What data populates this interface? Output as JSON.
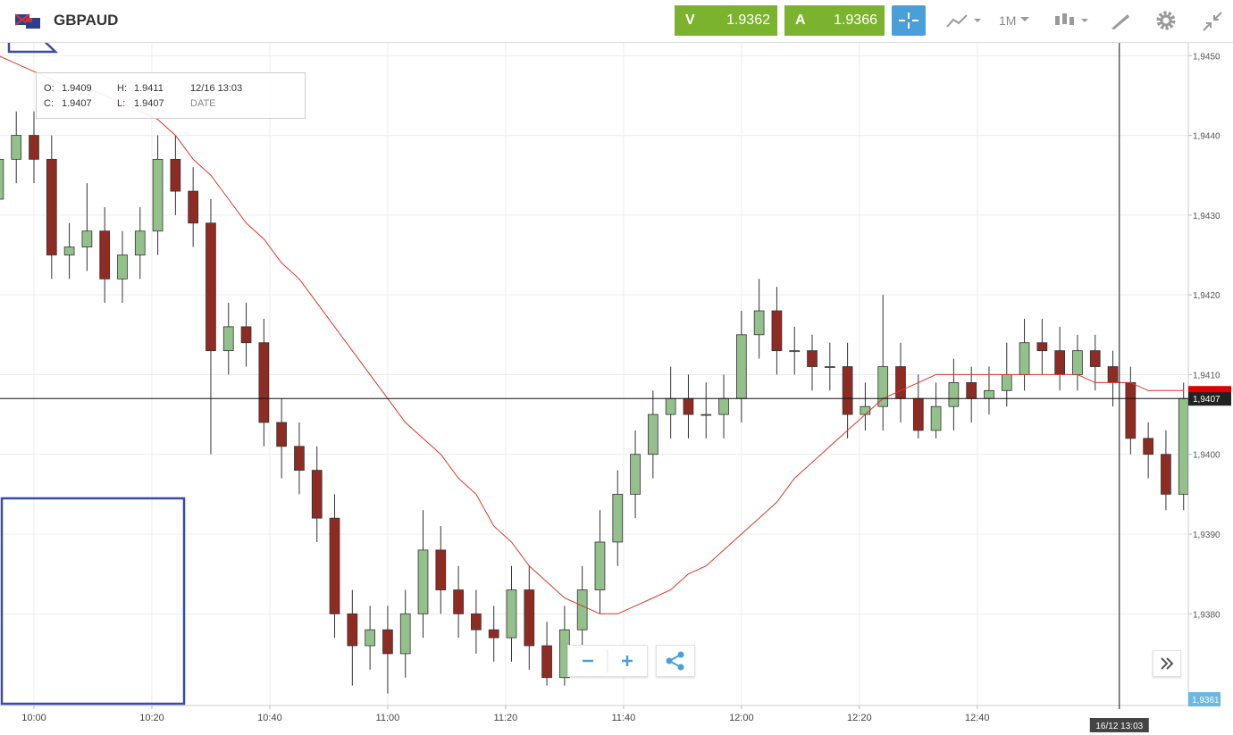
{
  "header": {
    "symbol": "GBPAUD",
    "sell_label": "V",
    "sell_price": "1.9362",
    "buy_label": "A",
    "buy_price": "1.9366",
    "timeframe": "1M"
  },
  "ohlc_box": {
    "o_label": "O:",
    "o": "1.9409",
    "h_label": "H:",
    "h": "1.9411",
    "c_label": "C:",
    "c": "1.9407",
    "l_label": "L:",
    "l": "1.9407",
    "date": "12/16 13:03",
    "date_label": "DATE"
  },
  "chart_data": {
    "type": "candlestick",
    "x": [
      -6,
      -3,
      0,
      3,
      6,
      9,
      12,
      15,
      18,
      21,
      24,
      27,
      30,
      33,
      36,
      39,
      42,
      45,
      48,
      51,
      54,
      57,
      60,
      63,
      66,
      69,
      72,
      75,
      78,
      81,
      84,
      87,
      90,
      93,
      96,
      99,
      102,
      105,
      108,
      111,
      114,
      117,
      120,
      123,
      126,
      129,
      132,
      135,
      138,
      141,
      144,
      147,
      150,
      153,
      156,
      159,
      162,
      165,
      168,
      171,
      174,
      177,
      180,
      183,
      186,
      189,
      192,
      195
    ],
    "open": [
      1.9432,
      1.9437,
      1.944,
      1.9437,
      1.9425,
      1.9426,
      1.9428,
      1.9422,
      1.9425,
      1.9428,
      1.9437,
      1.9433,
      1.9429,
      1.9413,
      1.9416,
      1.9414,
      1.9404,
      1.9401,
      1.9398,
      1.9392,
      1.938,
      1.9376,
      1.9378,
      1.9375,
      1.938,
      1.9388,
      1.9383,
      1.938,
      1.9378,
      1.9377,
      1.9383,
      1.9376,
      1.9372,
      1.9378,
      1.9383,
      1.9389,
      1.9395,
      1.94,
      1.9405,
      1.9407,
      1.9405,
      1.9405,
      1.9407,
      1.9415,
      1.9418,
      1.9413,
      1.9413,
      1.9411,
      1.9411,
      1.9405,
      1.9406,
      1.9411,
      1.9407,
      1.9403,
      1.9406,
      1.9409,
      1.9407,
      1.9408,
      1.941,
      1.9414,
      1.9413,
      1.941,
      1.9413,
      1.9411,
      1.9409,
      1.9402,
      1.94,
      1.9395
    ],
    "high": [
      1.944,
      1.9443,
      1.9443,
      1.944,
      1.9429,
      1.9434,
      1.9431,
      1.9428,
      1.9431,
      1.944,
      1.944,
      1.9436,
      1.9432,
      1.9419,
      1.9419,
      1.9417,
      1.9407,
      1.9404,
      1.9401,
      1.9395,
      1.9383,
      1.9381,
      1.9381,
      1.9383,
      1.9393,
      1.9391,
      1.9386,
      1.9383,
      1.9381,
      1.9386,
      1.9386,
      1.9379,
      1.9381,
      1.9386,
      1.9393,
      1.9398,
      1.9403,
      1.9408,
      1.9411,
      1.941,
      1.9409,
      1.941,
      1.9418,
      1.9422,
      1.9421,
      1.9416,
      1.9415,
      1.9414,
      1.9414,
      1.9409,
      1.942,
      1.9414,
      1.941,
      1.9409,
      1.9412,
      1.9411,
      1.9411,
      1.9414,
      1.9417,
      1.9417,
      1.9416,
      1.9415,
      1.9415,
      1.9413,
      1.9411,
      1.9404,
      1.9403,
      1.9409
    ],
    "low": [
      1.9429,
      1.9434,
      1.9434,
      1.9422,
      1.9422,
      1.9423,
      1.9419,
      1.9419,
      1.9422,
      1.9425,
      1.943,
      1.9426,
      1.94,
      1.941,
      1.9411,
      1.9401,
      1.9397,
      1.9395,
      1.9389,
      1.9377,
      1.9371,
      1.9373,
      1.937,
      1.9372,
      1.9377,
      1.938,
      1.9377,
      1.9375,
      1.9374,
      1.9374,
      1.9373,
      1.9371,
      1.9371,
      1.9375,
      1.938,
      1.9386,
      1.9392,
      1.9397,
      1.9402,
      1.9402,
      1.9402,
      1.9402,
      1.9404,
      1.9412,
      1.941,
      1.941,
      1.9408,
      1.9408,
      1.9402,
      1.9403,
      1.9403,
      1.9404,
      1.9402,
      1.9402,
      1.9403,
      1.9404,
      1.9405,
      1.9406,
      1.9408,
      1.941,
      1.9408,
      1.9408,
      1.9408,
      1.9406,
      1.94,
      1.9397,
      1.9393,
      1.9393
    ],
    "close": [
      1.9437,
      1.944,
      1.9437,
      1.9425,
      1.9426,
      1.9428,
      1.9422,
      1.9425,
      1.9428,
      1.9437,
      1.9433,
      1.9429,
      1.9413,
      1.9416,
      1.9414,
      1.9404,
      1.9401,
      1.9398,
      1.9392,
      1.938,
      1.9376,
      1.9378,
      1.9375,
      1.938,
      1.9388,
      1.9383,
      1.938,
      1.9378,
      1.9377,
      1.9383,
      1.9376,
      1.9372,
      1.9378,
      1.9383,
      1.9389,
      1.9395,
      1.94,
      1.9405,
      1.9407,
      1.9405,
      1.9405,
      1.9407,
      1.9415,
      1.9418,
      1.9413,
      1.9413,
      1.9411,
      1.9411,
      1.9405,
      1.9406,
      1.9411,
      1.9407,
      1.9403,
      1.9406,
      1.9409,
      1.9407,
      1.9408,
      1.941,
      1.9414,
      1.9413,
      1.941,
      1.9413,
      1.9411,
      1.9409,
      1.9402,
      1.94,
      1.9395,
      1.9407
    ],
    "up_color": "#94c08c",
    "down_color": "#8e2b22",
    "ma": {
      "color": "#d8382c",
      "values": [
        1.945,
        1.9449,
        1.9448,
        1.9447,
        1.9446,
        1.9446,
        1.9445,
        1.9444,
        1.9443,
        1.9442,
        1.944,
        1.9437,
        1.9435,
        1.9432,
        1.9429,
        1.9427,
        1.9424,
        1.9422,
        1.9419,
        1.9416,
        1.9413,
        1.941,
        1.9407,
        1.9404,
        1.9402,
        1.94,
        1.9397,
        1.9395,
        1.9391,
        1.9389,
        1.9386,
        1.9384,
        1.9382,
        1.9381,
        1.938,
        1.938,
        1.9381,
        1.9382,
        1.9383,
        1.9385,
        1.9386,
        1.9388,
        1.939,
        1.9392,
        1.9394,
        1.9397,
        1.9399,
        1.9401,
        1.9403,
        1.9405,
        1.9407,
        1.9408,
        1.9409,
        1.941,
        1.941,
        1.941,
        1.941,
        1.941,
        1.941,
        1.941,
        1.941,
        1.941,
        1.9409,
        1.9409,
        1.9409,
        1.9408,
        1.9408,
        1.9408
      ]
    },
    "xlim": [
      -5.76,
      195.8
    ],
    "ylim": [
      1.93685,
      1.94516
    ],
    "xticks": [
      {
        "value": 0,
        "label": "10:00"
      },
      {
        "value": 20,
        "label": "10:20"
      },
      {
        "value": 40,
        "label": "10:40"
      },
      {
        "value": 60,
        "label": "11:00"
      },
      {
        "value": 80,
        "label": "11:20"
      },
      {
        "value": 100,
        "label": "11:40"
      },
      {
        "value": 120,
        "label": "12:00"
      },
      {
        "value": 140,
        "label": "12:20"
      },
      {
        "value": 160,
        "label": "12:40"
      }
    ],
    "yticks": [
      {
        "value": 1.938,
        "label": "1,9380"
      },
      {
        "value": 1.939,
        "label": "1,9390"
      },
      {
        "value": 1.94,
        "label": "1,9400"
      },
      {
        "value": 1.941,
        "label": "1,9410"
      },
      {
        "value": 1.942,
        "label": "1,9420"
      },
      {
        "value": 1.943,
        "label": "1,9430"
      },
      {
        "value": 1.944,
        "label": "1,9440"
      },
      {
        "value": 1.945,
        "label": "1,9450"
      }
    ],
    "grid": true,
    "price_line": {
      "value": 1.9407,
      "label": "1,9407"
    },
    "bid_label": "1,9361",
    "crosshair": {
      "x": 184.1,
      "label": "16/12 13:03"
    }
  }
}
